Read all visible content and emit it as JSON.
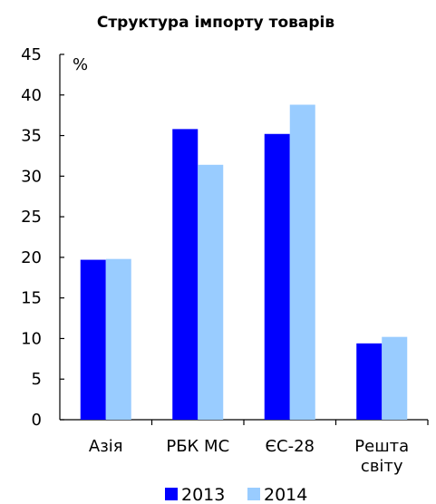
{
  "chart_data": {
    "type": "bar",
    "title": "Структура імпорту товарів",
    "ylabel": "%",
    "xlabel": "",
    "ylim": [
      0,
      45
    ],
    "yticks": [
      0,
      5,
      10,
      15,
      20,
      25,
      30,
      35,
      40,
      45
    ],
    "categories": [
      [
        "Азія"
      ],
      [
        "РБК МС"
      ],
      [
        "ЄС-28"
      ],
      [
        "Решта",
        "світу"
      ]
    ],
    "series": [
      {
        "name": "2013",
        "color": "#0000ff",
        "values": [
          19.7,
          35.8,
          35.2,
          9.4
        ]
      },
      {
        "name": "2014",
        "color": "#99ccff",
        "values": [
          19.8,
          31.4,
          38.8,
          10.2
        ]
      }
    ],
    "grid": false,
    "legend_position": "bottom"
  }
}
